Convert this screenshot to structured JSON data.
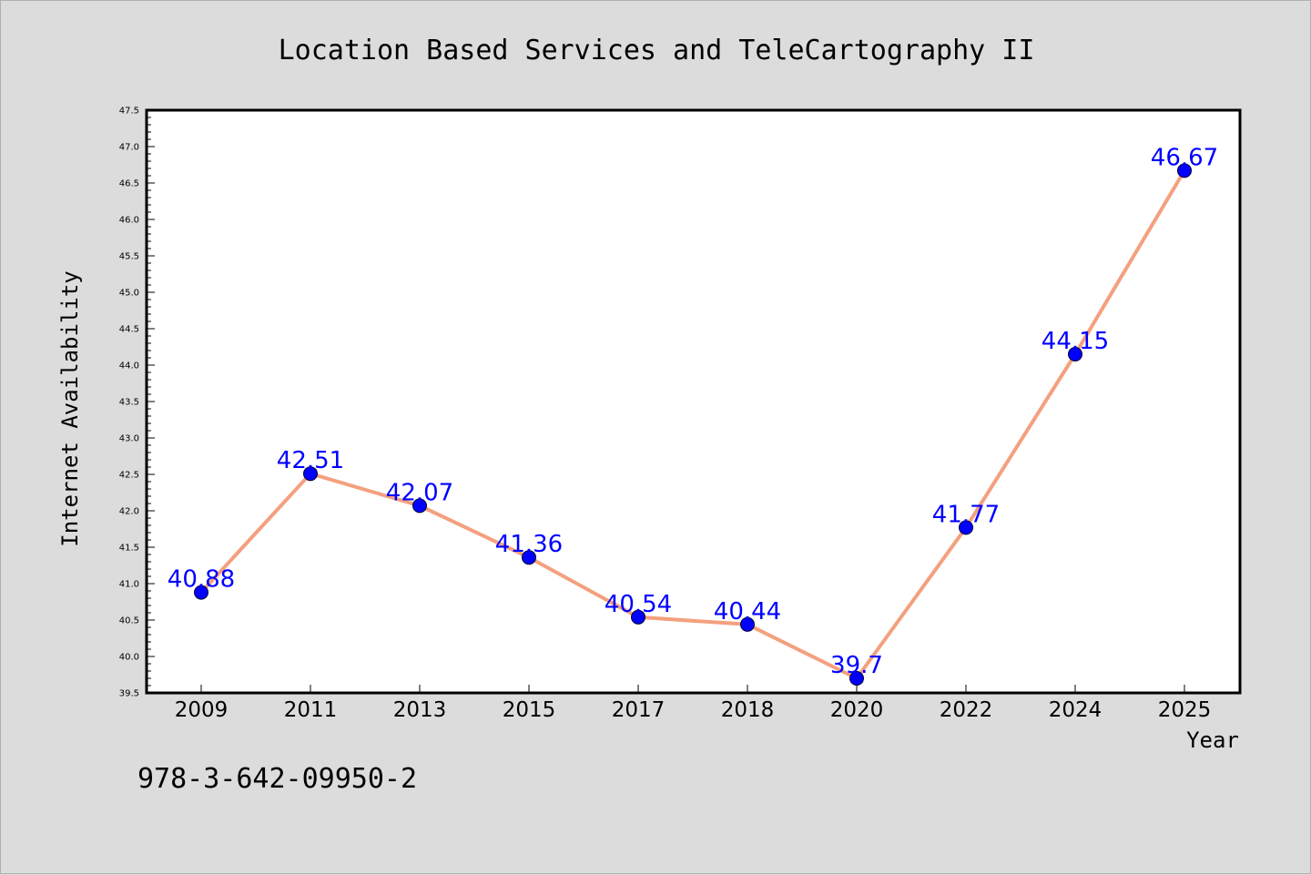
{
  "chart_data": {
    "type": "line",
    "title": "Location Based Services and TeleCartography II",
    "xlabel": "Year",
    "ylabel": "Internet Availability",
    "categories": [
      "2009",
      "2011",
      "2013",
      "2015",
      "2017",
      "2018",
      "2020",
      "2022",
      "2024",
      "2025"
    ],
    "series": [
      {
        "values": [
          40.88,
          42.51,
          42.07,
          41.36,
          40.54,
          40.44,
          39.7,
          41.77,
          44.15,
          46.67
        ],
        "data_labels": [
          "40.88",
          "42.51",
          "42.07",
          "41.36",
          "40.54",
          "40.44",
          "39.7",
          "41.77",
          "44.15",
          "46.67"
        ]
      }
    ],
    "ylim": [
      39.5,
      47.5
    ],
    "y_ticks": [
      "39.5",
      "40.0",
      "40.5",
      "41.0",
      "41.5",
      "42.0",
      "42.5",
      "43.0",
      "43.5",
      "44.0",
      "44.5",
      "45.0",
      "45.5",
      "46.0",
      "46.5",
      "47.0",
      "47.5"
    ],
    "grid": false,
    "legend": "none",
    "colors": {
      "line": "#f4a07e",
      "marker": "#0000ff",
      "label": "#0000ff",
      "plot_background": "#ffffff",
      "figure_background": "#dcdcdc"
    }
  },
  "footer": {
    "isbn": "978-3-642-09950-2"
  }
}
